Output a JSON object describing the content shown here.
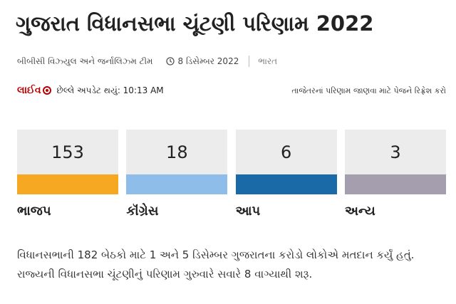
{
  "header": {
    "title": "ગુજરાત વિધાનસભા ચૂંટણી પરિણામ 2022"
  },
  "byline": {
    "author": "બીબીસી વિઝ્યુલ અને જર્નાલિઝ્મ ટીમ",
    "date": "8 ડિસેમ્બર 2022",
    "section": "ભારત"
  },
  "live": {
    "label": "લાઈવ",
    "updated": "છેલ્લે અપડેટ થયું: 10:13 AM",
    "refresh": "તાજેતરનાં પરિણામ જાણવા માટે પેજને રિફ્રેશ કરો"
  },
  "results": [
    {
      "party": "ભાજપ",
      "seats": 153,
      "color": "#f7a823"
    },
    {
      "party": "કૉંગ્રેસ",
      "seats": 18,
      "color": "#8fbde9"
    },
    {
      "party": "આપ",
      "seats": 6,
      "color": "#1a6aa8"
    },
    {
      "party": "અન્ય",
      "seats": 3,
      "color": "#a49eae"
    }
  ],
  "paragraph": "વિધાનસભાની 182 બેઠકો માટે 1 અને 5 ડિસેમ્બર ગુજરાતના કરોડો લોકોએ મતદાન કર્યું હતું. રાજ્યની વિધાનસભા ચૂંટણીનું પરિણામ ગુરુવારે સવારે 8 વાગ્યાથી શરૂ."
}
